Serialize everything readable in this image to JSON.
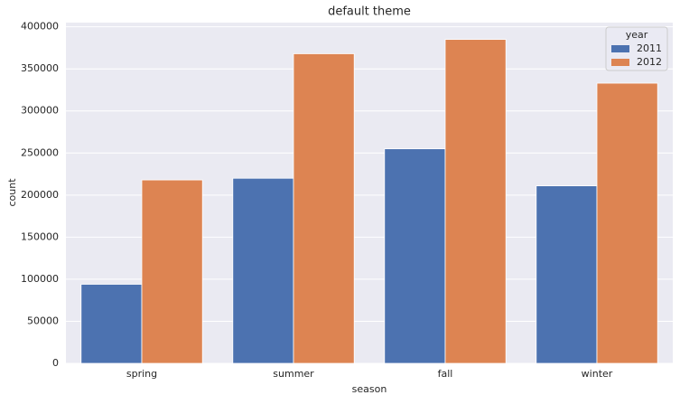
{
  "chart_data": {
    "type": "bar",
    "title": "default theme",
    "x_label": "season",
    "y_label": "count",
    "categories": [
      "spring",
      "summer",
      "fall",
      "winter"
    ],
    "series": [
      {
        "name": "2011",
        "color": "#4c72b0",
        "values": [
          94000,
          220000,
          255000,
          211000
        ]
      },
      {
        "name": "2012",
        "color": "#dd8452",
        "values": [
          218000,
          368000,
          385000,
          333000
        ]
      }
    ],
    "legend_title": "year",
    "legend": "upper right",
    "ylim": [
      0,
      405000
    ],
    "yticks": [
      0,
      50000,
      100000,
      150000,
      200000,
      250000,
      300000,
      350000,
      400000
    ],
    "grid": true
  }
}
